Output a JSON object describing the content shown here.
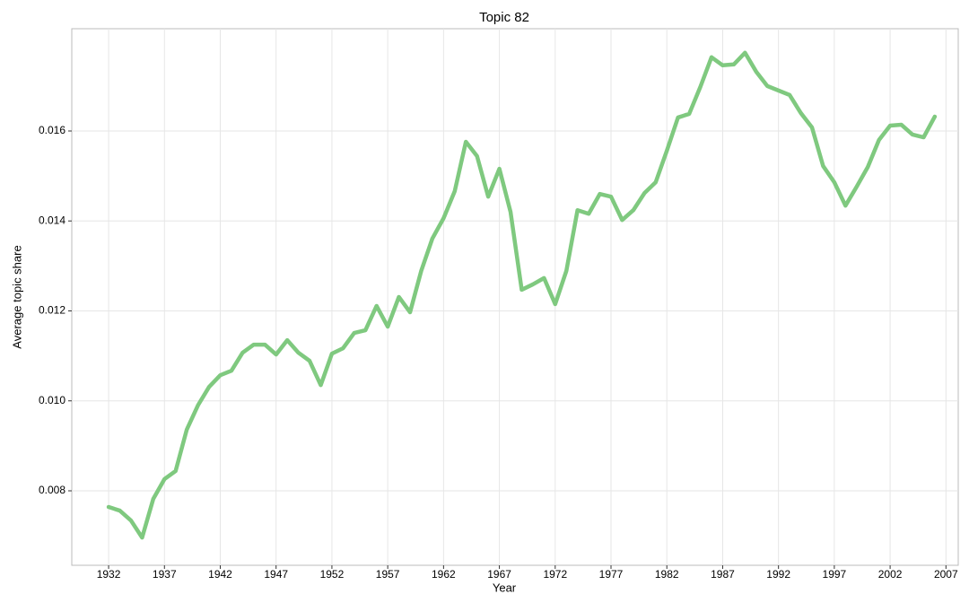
{
  "chart_data": {
    "type": "line",
    "title": "Topic 82",
    "x_label": "Year",
    "y_label": "Average topic share",
    "x": [
      1932,
      1933,
      1934,
      1935,
      1936,
      1937,
      1938,
      1939,
      1940,
      1941,
      1942,
      1943,
      1944,
      1945,
      1946,
      1947,
      1948,
      1949,
      1950,
      1951,
      1952,
      1953,
      1954,
      1955,
      1956,
      1957,
      1958,
      1959,
      1960,
      1961,
      1962,
      1963,
      1964,
      1965,
      1966,
      1967,
      1968,
      1969,
      1970,
      1971,
      1972,
      1973,
      1974,
      1975,
      1976,
      1977,
      1978,
      1979,
      1980,
      1981,
      1982,
      1983,
      1984,
      1985,
      1986,
      1987,
      1988,
      1989,
      1990,
      1991,
      1992,
      1993,
      1994,
      1995,
      1996,
      1997,
      1998,
      1999,
      2000,
      2001,
      2002,
      2003,
      2004,
      2005,
      2006
    ],
    "series": [
      {
        "name": "Topic 82",
        "color": "#7fc97f",
        "values": [
          0.00764,
          0.00756,
          0.00734,
          0.00696,
          0.00782,
          0.00826,
          0.00844,
          0.00936,
          0.0099,
          0.01031,
          0.01057,
          0.01067,
          0.01107,
          0.01125,
          0.01125,
          0.01103,
          0.01135,
          0.01107,
          0.01089,
          0.01035,
          0.01105,
          0.01117,
          0.01151,
          0.01157,
          0.01211,
          0.01165,
          0.01231,
          0.01197,
          0.01289,
          0.01361,
          0.01406,
          0.01466,
          0.01576,
          0.01544,
          0.01454,
          0.01516,
          0.0142,
          0.01247,
          0.01259,
          0.01273,
          0.01215,
          0.01289,
          0.01424,
          0.01416,
          0.0146,
          0.01454,
          0.01402,
          0.01424,
          0.01462,
          0.01486,
          0.01556,
          0.0163,
          0.01638,
          0.01698,
          0.01764,
          0.01746,
          0.01748,
          0.01774,
          0.01732,
          0.017,
          0.0169,
          0.0168,
          0.0164,
          0.01608,
          0.01522,
          0.01486,
          0.01434,
          0.01476,
          0.0152,
          0.0158,
          0.01612,
          0.01614,
          0.01592,
          0.01586,
          0.01632
        ]
      }
    ],
    "xlim": [
      1928.7,
      2008.1
    ],
    "xticks": [
      1932,
      1937,
      1942,
      1947,
      1952,
      1957,
      1962,
      1967,
      1972,
      1977,
      1982,
      1987,
      1992,
      1997,
      2002,
      2007
    ],
    "ylim": [
      0.006344,
      0.018274
    ],
    "yticks": [
      0.008,
      {
        "value": 0.01,
        "label": "0.010"
      },
      0.012,
      0.014,
      0.016
    ],
    "grid": true
  }
}
